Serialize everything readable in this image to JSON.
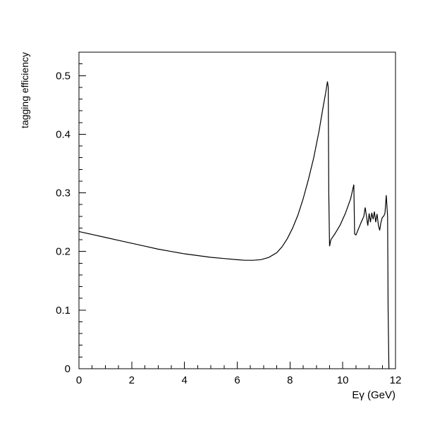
{
  "chart_data": {
    "type": "line",
    "title": "",
    "xlabel": "Eγ (GeV)",
    "ylabel": "tagging efficiency",
    "xlim": [
      0,
      12
    ],
    "ylim": [
      0,
      0.54
    ],
    "x_ticks": [
      0,
      2,
      4,
      6,
      8,
      10,
      12
    ],
    "x_tick_labels": [
      "0",
      "2",
      "4",
      "6",
      "8",
      "10",
      "12"
    ],
    "y_ticks": [
      0,
      0.1,
      0.2,
      0.3,
      0.4,
      0.5
    ],
    "y_tick_labels": [
      "0",
      "0.1",
      "0.2",
      "0.3",
      "0.4",
      "0.5"
    ],
    "grid": false,
    "series": [
      {
        "x": [
          0.0,
          0.5,
          1.0,
          1.5,
          2.0,
          2.5,
          3.0,
          3.5,
          4.0,
          4.5,
          5.0,
          5.5,
          6.0,
          6.3,
          6.6,
          6.9,
          7.2,
          7.5,
          7.7,
          7.9,
          8.1,
          8.3,
          8.5,
          8.7,
          8.9,
          9.1,
          9.25,
          9.35,
          9.42,
          9.45,
          9.47,
          9.5,
          9.55,
          9.7,
          9.9,
          10.1,
          10.3,
          10.42,
          10.45,
          10.5,
          10.7,
          10.8,
          10.85,
          10.9,
          10.95,
          11.0,
          11.05,
          11.1,
          11.15,
          11.2,
          11.25,
          11.3,
          11.35,
          11.4,
          11.45,
          11.5,
          11.55,
          11.6,
          11.65,
          11.7,
          11.72,
          11.75
        ],
        "y": [
          0.234,
          0.229,
          0.224,
          0.219,
          0.214,
          0.209,
          0.204,
          0.2,
          0.196,
          0.193,
          0.19,
          0.188,
          0.186,
          0.185,
          0.185,
          0.186,
          0.19,
          0.198,
          0.208,
          0.222,
          0.24,
          0.262,
          0.29,
          0.323,
          0.36,
          0.405,
          0.445,
          0.47,
          0.49,
          0.48,
          0.3,
          0.209,
          0.22,
          0.23,
          0.245,
          0.265,
          0.29,
          0.314,
          0.23,
          0.228,
          0.25,
          0.26,
          0.275,
          0.26,
          0.244,
          0.265,
          0.25,
          0.266,
          0.255,
          0.268,
          0.25,
          0.264,
          0.245,
          0.236,
          0.25,
          0.258,
          0.26,
          0.265,
          0.296,
          0.26,
          0.1,
          0.0
        ]
      }
    ]
  }
}
